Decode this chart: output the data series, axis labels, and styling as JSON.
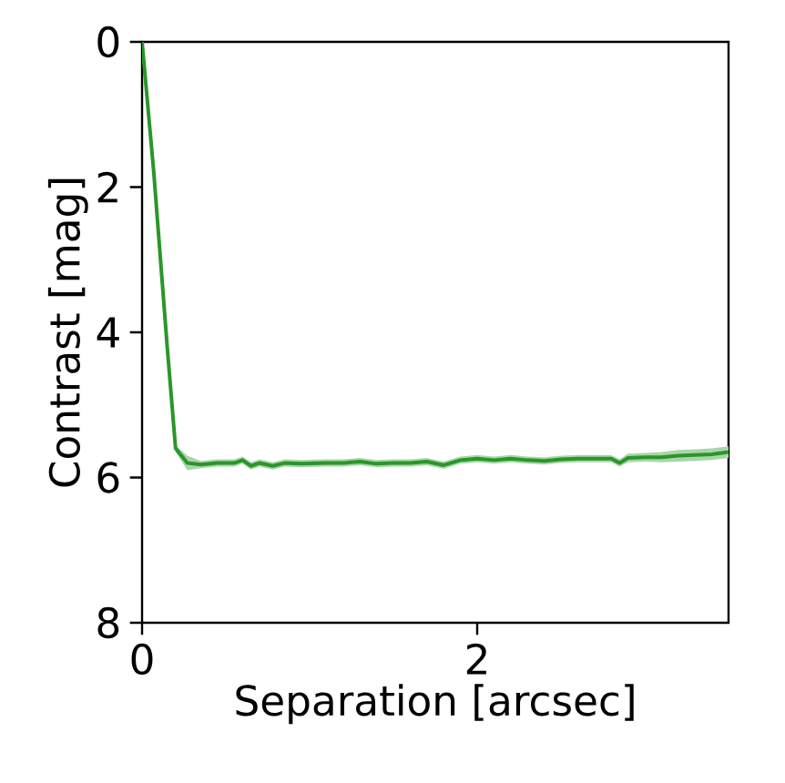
{
  "chart_data": {
    "type": "line",
    "xlabel": "Separation [arcsec]",
    "ylabel": "Contrast [mag]",
    "xlim": [
      0,
      3.5
    ],
    "ylim": [
      8,
      0
    ],
    "xticks": [
      0,
      2
    ],
    "yticks": [
      0,
      2,
      4,
      6,
      8
    ],
    "grid": false,
    "x": [
      0,
      0.07,
      0.15,
      0.2,
      0.27,
      0.35,
      0.45,
      0.55,
      0.6,
      0.65,
      0.7,
      0.78,
      0.85,
      0.95,
      1.1,
      1.2,
      1.3,
      1.4,
      1.5,
      1.6,
      1.7,
      1.8,
      1.9,
      2.0,
      2.1,
      2.2,
      2.3,
      2.4,
      2.5,
      2.6,
      2.7,
      2.8,
      2.85,
      2.9,
      3.0,
      3.1,
      3.2,
      3.3,
      3.4,
      3.5
    ],
    "series": [
      {
        "color": "#2a962a",
        "values": [
          0,
          1.8,
          4.2,
          5.6,
          5.8,
          5.82,
          5.8,
          5.8,
          5.76,
          5.84,
          5.8,
          5.84,
          5.8,
          5.81,
          5.8,
          5.8,
          5.78,
          5.81,
          5.8,
          5.8,
          5.78,
          5.83,
          5.76,
          5.74,
          5.76,
          5.74,
          5.76,
          5.77,
          5.75,
          5.74,
          5.74,
          5.74,
          5.8,
          5.73,
          5.72,
          5.72,
          5.7,
          5.69,
          5.68,
          5.65
        ],
        "lower": [
          0,
          1.75,
          4.15,
          5.55,
          5.7,
          5.77,
          5.75,
          5.75,
          5.71,
          5.79,
          5.75,
          5.79,
          5.75,
          5.76,
          5.75,
          5.75,
          5.73,
          5.76,
          5.75,
          5.75,
          5.73,
          5.78,
          5.71,
          5.69,
          5.71,
          5.69,
          5.71,
          5.72,
          5.7,
          5.69,
          5.69,
          5.69,
          5.75,
          5.67,
          5.66,
          5.65,
          5.62,
          5.61,
          5.6,
          5.57
        ],
        "upper": [
          0,
          1.85,
          4.25,
          5.65,
          5.9,
          5.87,
          5.85,
          5.85,
          5.81,
          5.89,
          5.85,
          5.89,
          5.85,
          5.86,
          5.85,
          5.85,
          5.83,
          5.86,
          5.85,
          5.85,
          5.83,
          5.88,
          5.81,
          5.79,
          5.81,
          5.79,
          5.81,
          5.82,
          5.8,
          5.79,
          5.79,
          5.79,
          5.85,
          5.79,
          5.78,
          5.79,
          5.78,
          5.77,
          5.76,
          5.73
        ]
      }
    ]
  }
}
